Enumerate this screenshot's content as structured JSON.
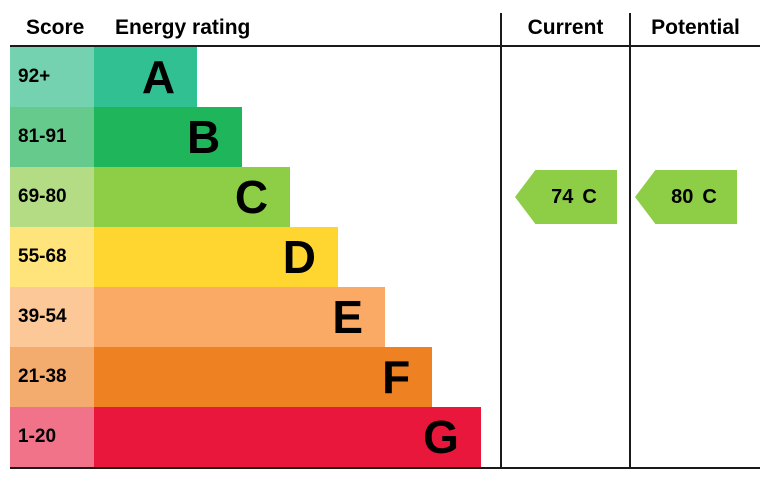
{
  "header": {
    "score": "Score",
    "rating": "Energy rating",
    "current": "Current",
    "potential": "Potential"
  },
  "bands": [
    {
      "score": "92+",
      "letter": "A",
      "bar_color": "#31c092",
      "tint_color": "#74d2b0",
      "width_pct": 25.4
    },
    {
      "score": "81-91",
      "letter": "B",
      "bar_color": "#1eb55b",
      "tint_color": "#66ca8c",
      "width_pct": 36.5
    },
    {
      "score": "69-80",
      "letter": "C",
      "bar_color": "#8dce46",
      "tint_color": "#b3dc84",
      "width_pct": 48.3
    },
    {
      "score": "55-68",
      "letter": "D",
      "bar_color": "#ffd630",
      "tint_color": "#ffe47c",
      "width_pct": 60.1
    },
    {
      "score": "39-54",
      "letter": "E",
      "bar_color": "#fbaa65",
      "tint_color": "#fcc897",
      "width_pct": 71.7
    },
    {
      "score": "21-38",
      "letter": "F",
      "bar_color": "#ee8122",
      "tint_color": "#f4ab6e",
      "width_pct": 83.3
    },
    {
      "score": "1-20",
      "letter": "G",
      "bar_color": "#e9173c",
      "tint_color": "#f17389",
      "width_pct": 95.3
    }
  ],
  "current": {
    "value": "74",
    "letter": "C",
    "arrow_color": "#8dce46",
    "band_index": 2
  },
  "potential": {
    "value": "80",
    "letter": "C",
    "arrow_color": "#8dce46",
    "band_index": 2
  },
  "chart_data": {
    "type": "bar",
    "orientation": "horizontal",
    "title": "Energy rating",
    "columns": [
      "Score",
      "Energy rating",
      "Current",
      "Potential"
    ],
    "categories": [
      "A",
      "B",
      "C",
      "D",
      "E",
      "F",
      "G"
    ],
    "score_ranges": [
      "92+",
      "81-91",
      "69-80",
      "55-68",
      "39-54",
      "21-38",
      "1-20"
    ],
    "bar_length_pct": [
      25.4,
      36.5,
      48.3,
      60.1,
      71.7,
      83.3,
      95.3
    ],
    "band_colors": [
      "#31c092",
      "#1eb55b",
      "#8dce46",
      "#ffd630",
      "#fbaa65",
      "#ee8122",
      "#e9173c"
    ],
    "current": {
      "score": 74,
      "rating": "C"
    },
    "potential": {
      "score": 80,
      "rating": "C"
    }
  }
}
